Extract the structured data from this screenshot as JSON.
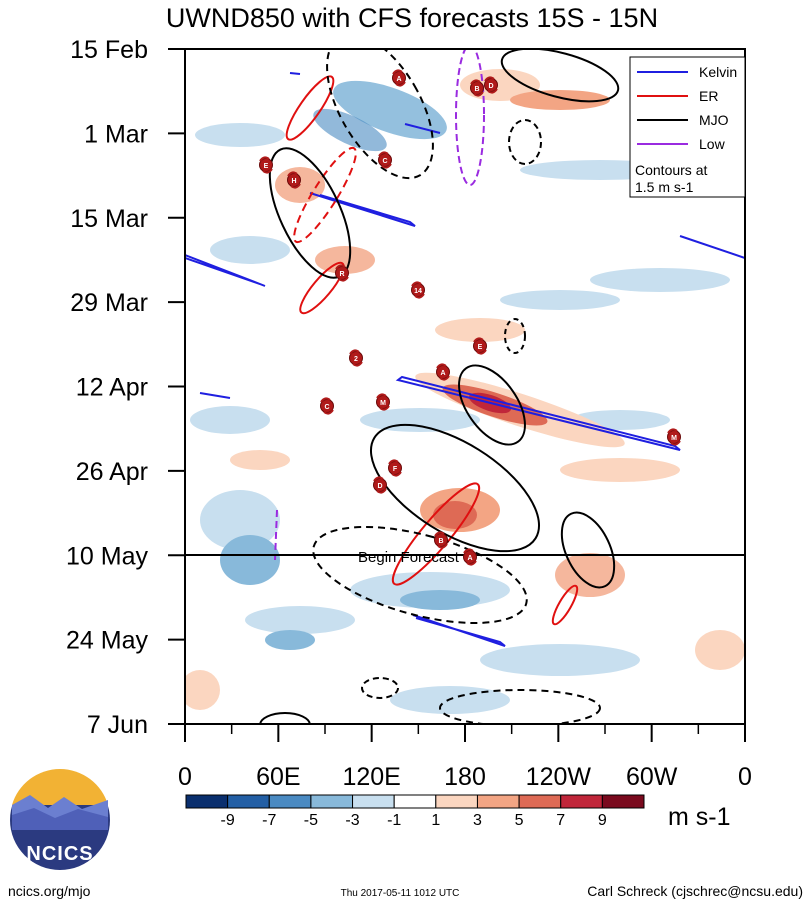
{
  "chart_data": {
    "type": "heatmap",
    "title": "UWND850 with CFS forecasts  15S - 15N",
    "x_ticks": [
      "0",
      "60E",
      "120E",
      "180",
      "120W",
      "60W",
      "0"
    ],
    "y_ticks": [
      "15 Feb",
      "1 Mar",
      "15 Mar",
      "29 Mar",
      "12 Apr",
      "26 Apr",
      "10 May",
      "24 May",
      "7 Jun"
    ],
    "x_range_deg_east": [
      0,
      360
    ],
    "forecast_start": "10 May",
    "forecast_label": "Begin Forecast",
    "legend": {
      "entries": [
        {
          "name": "Kelvin",
          "color": "#1f1fe0"
        },
        {
          "name": "ER",
          "color": "#e01010"
        },
        {
          "name": "MJO",
          "color": "#000000"
        },
        {
          "name": "Low",
          "color": "#9a2be0"
        }
      ],
      "note_line1": "Contours at",
      "note_line2": "1.5 m s-1",
      "placement": "top-right"
    },
    "colorbar": {
      "labels": [
        "-9",
        "-7",
        "-5",
        "-3",
        "-1",
        "1",
        "3",
        "5",
        "7",
        "9"
      ],
      "colors": [
        "#0a2f6e",
        "#235fa5",
        "#4a8ac2",
        "#88b9da",
        "#c8dfef",
        "#ffffff",
        "#fbd6c0",
        "#f3a584",
        "#de6a55",
        "#c0263a",
        "#7a0a1e"
      ],
      "unit": "m s-1"
    },
    "tc_markers": [
      "A",
      "B",
      "E",
      "H",
      "C",
      "D",
      "R",
      "14",
      "E",
      "2",
      "M",
      "C",
      "A",
      "M",
      "F",
      "D",
      "B",
      "A"
    ]
  },
  "footer": {
    "left": "ncics.org/mjo",
    "center": "Thu 2017-05-11 1012 UTC",
    "right": "Carl Schreck (cjschrec@ncsu.edu)"
  },
  "logo": {
    "text": "NCICS"
  }
}
